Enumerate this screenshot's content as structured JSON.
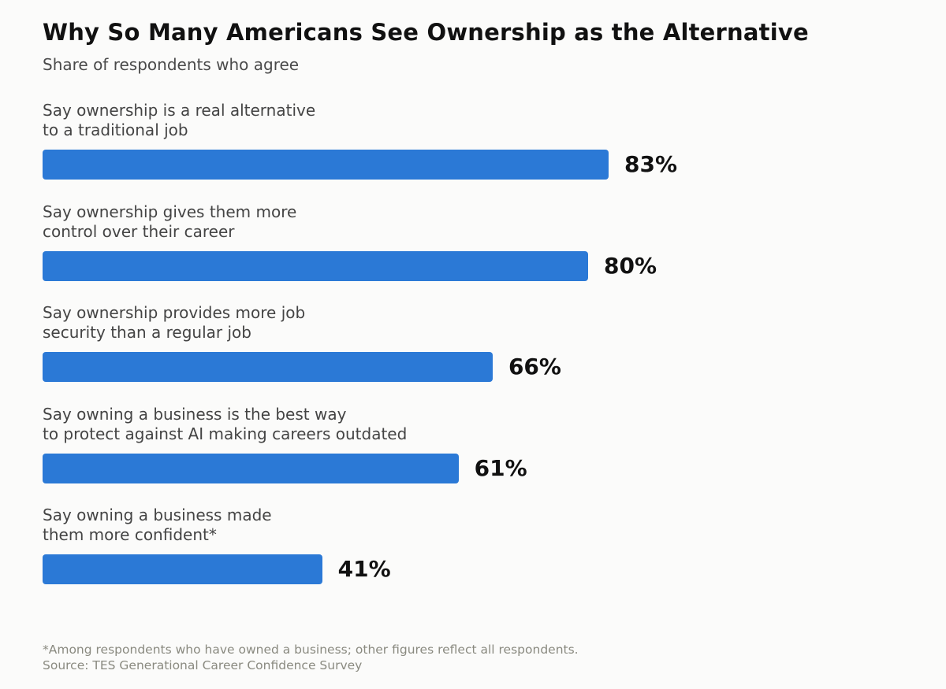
{
  "colors": {
    "bar": "#2b79d6",
    "background": "#fbfbfa"
  },
  "chart_data": {
    "type": "bar",
    "orientation": "horizontal",
    "title": "Why So Many Americans See Ownership as the Alternative",
    "subtitle": "Share of respondents who agree",
    "categories": [
      [
        "Say ownership is a real alternative",
        "to a traditional job"
      ],
      [
        "Say ownership gives them more",
        "control over their career"
      ],
      [
        "Say ownership provides more job",
        "security than a regular job"
      ],
      [
        "Say owning a business is the best way",
        "to protect against AI making careers outdated"
      ],
      [
        "Say owning a business made",
        "them more confident*"
      ]
    ],
    "values": [
      83,
      80,
      66,
      61,
      41
    ],
    "value_labels": [
      "83%",
      "80%",
      "66%",
      "61%",
      "41%"
    ],
    "xlim": [
      0,
      100
    ],
    "grid": false,
    "legend": "none"
  },
  "footnote": {
    "note": "*Among respondents who have owned a business; other figures reflect all respondents.",
    "source": "Source: TES Generational Career Confidence Survey"
  }
}
